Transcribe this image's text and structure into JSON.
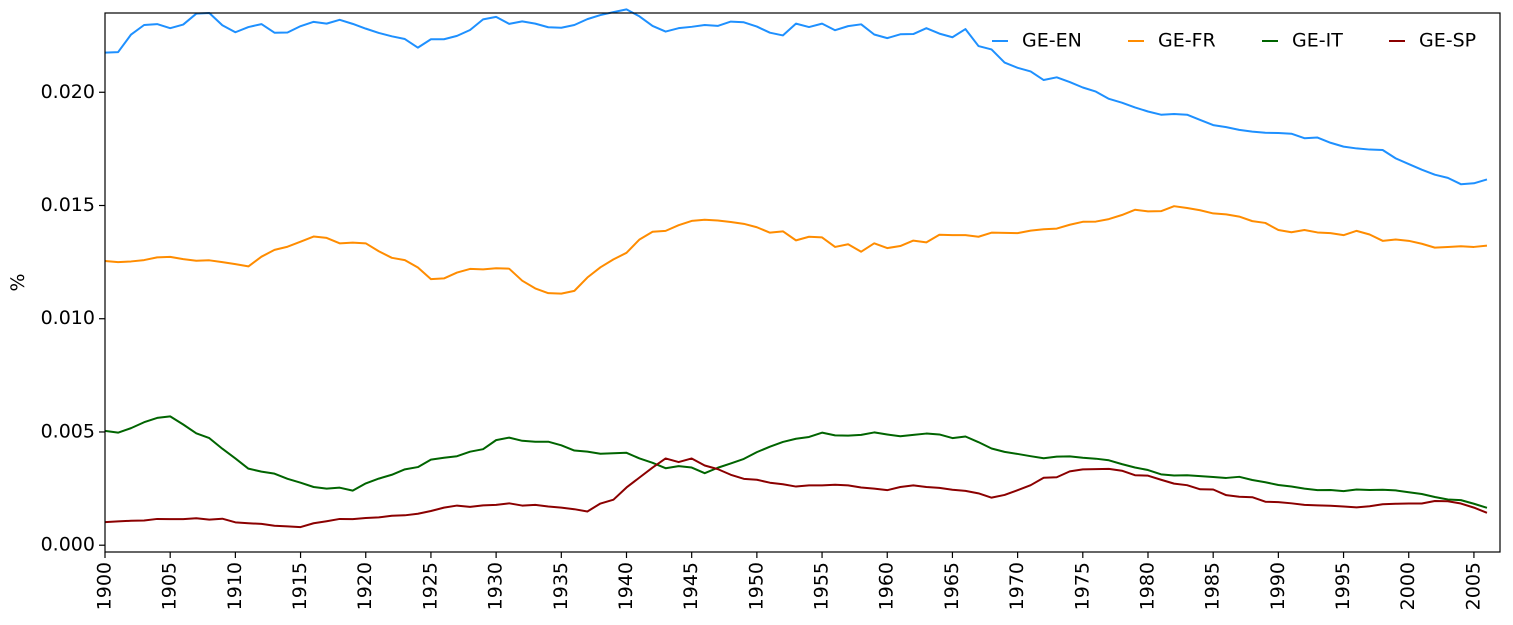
{
  "chart_data": {
    "type": "line",
    "title": "",
    "xlabel": "",
    "ylabel": "%",
    "xlim": [
      1900,
      2007
    ],
    "ylim": [
      -0.0003,
      0.0235
    ],
    "grid": false,
    "legend_position": "top-right",
    "x_ticks": [
      1900,
      1905,
      1910,
      1915,
      1920,
      1925,
      1930,
      1935,
      1940,
      1945,
      1950,
      1955,
      1960,
      1965,
      1970,
      1975,
      1980,
      1985,
      1990,
      1995,
      2000,
      2005
    ],
    "x_tick_labels": [
      "1900",
      "1905",
      "1910",
      "1915",
      "1920",
      "1925",
      "1930",
      "1935",
      "1940",
      "1945",
      "1950",
      "1955",
      "1960",
      "1965",
      "1970",
      "1975",
      "1980",
      "1985",
      "1990",
      "1995",
      "2000",
      "2005"
    ],
    "y_ticks": [
      0.0,
      0.005,
      0.01,
      0.015,
      0.02
    ],
    "y_tick_labels": [
      "0.000",
      "0.005",
      "0.010",
      "0.015",
      "0.020"
    ],
    "x_start": 1900,
    "x_step": 1,
    "series": [
      {
        "name": "GE-EN",
        "color": "#1e90ff",
        "values": [
          0.02175,
          0.02177,
          0.02255,
          0.02297,
          0.02301,
          0.02283,
          0.02299,
          0.02347,
          0.0235,
          0.02296,
          0.02265,
          0.02288,
          0.02301,
          0.02263,
          0.02264,
          0.02292,
          0.02311,
          0.02303,
          0.0232,
          0.02302,
          0.02281,
          0.02262,
          0.02247,
          0.02235,
          0.02197,
          0.02234,
          0.02234,
          0.02249,
          0.02275,
          0.02322,
          0.02333,
          0.02302,
          0.02313,
          0.02303,
          0.02287,
          0.02285,
          0.02297,
          0.02323,
          0.02341,
          0.02354,
          0.02366,
          0.02335,
          0.02293,
          0.02268,
          0.02283,
          0.02289,
          0.02297,
          0.02293,
          0.02312,
          0.02309,
          0.0229,
          0.02263,
          0.02251,
          0.02303,
          0.02288,
          0.02303,
          0.02274,
          0.02292,
          0.023,
          0.02255,
          0.02239,
          0.02256,
          0.02257,
          0.02283,
          0.02259,
          0.02243,
          0.02279,
          0.02204,
          0.02189,
          0.02131,
          0.02108,
          0.02092,
          0.02054,
          0.02066,
          0.02045,
          0.02021,
          0.02003,
          0.01971,
          0.01954,
          0.01933,
          0.01915,
          0.01901,
          0.01904,
          0.01901,
          0.01878,
          0.01855,
          0.01846,
          0.01834,
          0.01826,
          0.01821,
          0.0182,
          0.01817,
          0.01797,
          0.018,
          0.01777,
          0.0176,
          0.01752,
          0.01747,
          0.01745,
          0.01708,
          0.01683,
          0.01658,
          0.01636,
          0.01622,
          0.01594,
          0.01598,
          0.01615
        ]
      },
      {
        "name": "GE-FR",
        "color": "#ff8c00",
        "values": [
          0.01255,
          0.0125,
          0.01253,
          0.01259,
          0.01271,
          0.01273,
          0.01263,
          0.01256,
          0.01258,
          0.0125,
          0.01241,
          0.01231,
          0.01274,
          0.01304,
          0.01318,
          0.0134,
          0.01363,
          0.01357,
          0.01333,
          0.01336,
          0.01333,
          0.01298,
          0.01269,
          0.01259,
          0.01226,
          0.01175,
          0.01178,
          0.01204,
          0.0122,
          0.01218,
          0.01223,
          0.01221,
          0.01168,
          0.01134,
          0.01113,
          0.01111,
          0.01123,
          0.01182,
          0.01227,
          0.01262,
          0.01291,
          0.0135,
          0.01384,
          0.01388,
          0.01413,
          0.01432,
          0.01437,
          0.01434,
          0.01427,
          0.01419,
          0.01404,
          0.0138,
          0.01386,
          0.01346,
          0.01362,
          0.01359,
          0.01317,
          0.01329,
          0.01296,
          0.01333,
          0.01312,
          0.01321,
          0.01345,
          0.01337,
          0.01371,
          0.01369,
          0.01369,
          0.01362,
          0.0138,
          0.01379,
          0.01378,
          0.01389,
          0.01395,
          0.01398,
          0.01415,
          0.01428,
          0.01429,
          0.0144,
          0.01458,
          0.01481,
          0.01474,
          0.01475,
          0.01497,
          0.01489,
          0.01479,
          0.01465,
          0.01461,
          0.01451,
          0.01431,
          0.01423,
          0.01392,
          0.01382,
          0.01392,
          0.01381,
          0.01378,
          0.01369,
          0.01388,
          0.01372,
          0.01344,
          0.0135,
          0.01344,
          0.01331,
          0.01314,
          0.01317,
          0.0132,
          0.01317,
          0.01323
        ]
      },
      {
        "name": "GE-IT",
        "color": "#006400",
        "values": [
          0.00505,
          0.00497,
          0.00517,
          0.00543,
          0.00562,
          0.00569,
          0.00533,
          0.00494,
          0.00473,
          0.00426,
          0.00383,
          0.00338,
          0.00325,
          0.00316,
          0.00293,
          0.00276,
          0.00257,
          0.0025,
          0.00254,
          0.00241,
          0.00273,
          0.00294,
          0.00311,
          0.00335,
          0.00345,
          0.00378,
          0.00386,
          0.00393,
          0.00413,
          0.00424,
          0.00464,
          0.00475,
          0.00461,
          0.00457,
          0.00457,
          0.00441,
          0.00418,
          0.00413,
          0.00404,
          0.00406,
          0.00408,
          0.00383,
          0.00364,
          0.0034,
          0.00349,
          0.00343,
          0.00318,
          0.00342,
          0.00361,
          0.00381,
          0.00411,
          0.00435,
          0.00456,
          0.0047,
          0.00478,
          0.00497,
          0.00485,
          0.00484,
          0.00487,
          0.00498,
          0.00489,
          0.00481,
          0.00487,
          0.00493,
          0.00489,
          0.00473,
          0.0048,
          0.00455,
          0.00427,
          0.00412,
          0.00403,
          0.00393,
          0.00384,
          0.00391,
          0.00392,
          0.00386,
          0.00382,
          0.00375,
          0.00358,
          0.00343,
          0.00332,
          0.00313,
          0.00308,
          0.00309,
          0.00305,
          0.00301,
          0.00297,
          0.00302,
          0.00288,
          0.00278,
          0.00266,
          0.00259,
          0.0025,
          0.00243,
          0.00244,
          0.00239,
          0.00246,
          0.00244,
          0.00245,
          0.00242,
          0.00234,
          0.00226,
          0.00213,
          0.00202,
          0.00199,
          0.00183,
          0.00165
        ]
      },
      {
        "name": "GE-SP",
        "color": "#8b0000",
        "values": [
          0.00102,
          0.00105,
          0.00108,
          0.00109,
          0.00116,
          0.00115,
          0.00115,
          0.00119,
          0.00113,
          0.00117,
          0.00101,
          0.00097,
          0.00094,
          0.00086,
          0.00083,
          0.0008,
          0.00097,
          0.00106,
          0.00116,
          0.00115,
          0.0012,
          0.00123,
          0.0013,
          0.00132,
          0.00139,
          0.00151,
          0.00166,
          0.00175,
          0.00169,
          0.00176,
          0.00178,
          0.00185,
          0.00175,
          0.00178,
          0.00171,
          0.00166,
          0.00159,
          0.00149,
          0.00184,
          0.00201,
          0.00255,
          0.00299,
          0.00343,
          0.00383,
          0.00367,
          0.00383,
          0.00352,
          0.00336,
          0.00311,
          0.00293,
          0.00289,
          0.00276,
          0.00269,
          0.00259,
          0.00264,
          0.00264,
          0.00267,
          0.00264,
          0.00255,
          0.0025,
          0.00243,
          0.00257,
          0.00264,
          0.00257,
          0.00253,
          0.00245,
          0.0024,
          0.00229,
          0.0021,
          0.00222,
          0.00243,
          0.00265,
          0.00298,
          0.003,
          0.00326,
          0.00335,
          0.00336,
          0.00337,
          0.00329,
          0.00309,
          0.00307,
          0.00289,
          0.00272,
          0.00265,
          0.00247,
          0.00246,
          0.00221,
          0.00214,
          0.00212,
          0.00192,
          0.0019,
          0.00185,
          0.00178,
          0.00176,
          0.00174,
          0.00171,
          0.00167,
          0.00172,
          0.00181,
          0.00183,
          0.00184,
          0.00184,
          0.00195,
          0.00194,
          0.00184,
          0.00166,
          0.00143
        ]
      }
    ]
  }
}
